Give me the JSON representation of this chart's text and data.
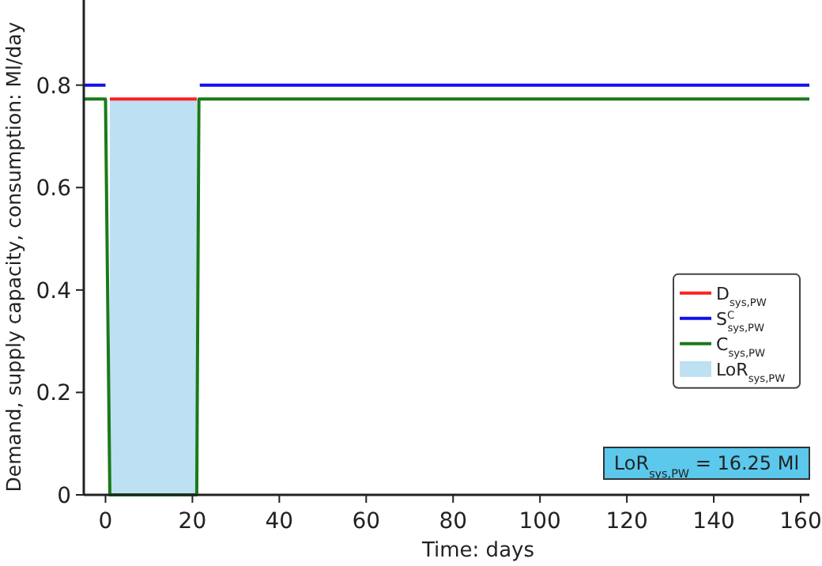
{
  "chart_data": {
    "type": "line",
    "xlabel": "Time: days",
    "ylabel": "Demand, supply capacity, consumption: Ml/day",
    "xlim": [
      -5,
      162
    ],
    "ylim": [
      0,
      0.96
    ],
    "xticks": [
      0,
      20,
      40,
      60,
      80,
      100,
      120,
      140,
      160
    ],
    "yticks": [
      0,
      0.2,
      0.4,
      0.6,
      0.8
    ],
    "grid": false,
    "legend": "right",
    "line_style": "solid",
    "marker": "none",
    "series": [
      {
        "name": "LoR$_{sys,PW}$",
        "type": "area",
        "color": "#bde0f2",
        "x": [
          1,
          21
        ],
        "values": [
          0.773,
          0.773
        ]
      },
      {
        "name": "D$_{sys,PW}$",
        "color": "#ff2020",
        "x": [
          1,
          21
        ],
        "values": [
          0.773,
          0.773
        ]
      },
      {
        "name": "S$^{C}$$_{sys,PW}$",
        "color": "#1010ee",
        "x": [
          -5,
          0,
          10,
          21.7,
          162
        ],
        "values": [
          0.8,
          0.8,
          null,
          0.8,
          0.8
        ]
      },
      {
        "name": "C$_{sys,PW}$",
        "color": "#1a7a1a",
        "x": [
          -5,
          0,
          1,
          21,
          21.5,
          162
        ],
        "values": [
          0.773,
          0.773,
          0,
          0,
          0.773,
          0.773
        ]
      }
    ],
    "annotations": [
      "LoR$_{sys,PW}$ = 16.25 Ml"
    ]
  }
}
